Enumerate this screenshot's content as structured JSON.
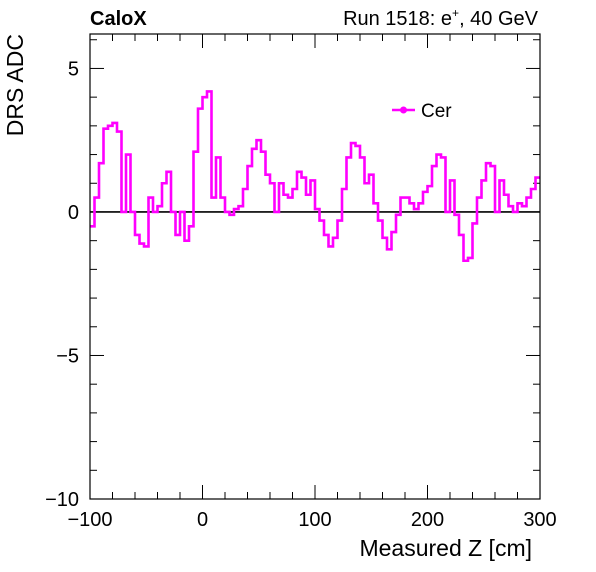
{
  "header": {
    "experiment": "CaloX",
    "run_label_prefix": "Run 1518: e",
    "run_label_sup": "+",
    "run_label_suffix": ", 40 GeV"
  },
  "colors": {
    "series": "#ff00ff",
    "zero_line": "#000000",
    "frame": "#000000"
  },
  "chart_data": {
    "type": "line",
    "style": "histogram-step",
    "title": "",
    "xlabel": "Measured Z [cm]",
    "ylabel": "DRS ADC",
    "xlim": [
      -100,
      300
    ],
    "ylim": [
      -10,
      6.2
    ],
    "x_ticks": [
      -100,
      0,
      100,
      200,
      300
    ],
    "x_tick_labels": [
      "−100",
      "0",
      "100",
      "200",
      "300"
    ],
    "y_ticks": [
      -10,
      -5,
      0,
      5
    ],
    "y_tick_labels": [
      "−10",
      "−5",
      "0",
      "5"
    ],
    "grid": false,
    "legend_position": "top-right",
    "series": [
      {
        "name": "Cer",
        "marker": "circle",
        "bin_width": 4,
        "bin_start": -100,
        "values": [
          -0.5,
          0.5,
          1.7,
          2.9,
          3.0,
          3.1,
          2.8,
          0.0,
          2.0,
          0.0,
          -0.8,
          -1.1,
          -1.2,
          0.5,
          0.0,
          0.2,
          1.0,
          1.4,
          0.0,
          -0.8,
          0.0,
          -1.0,
          -0.5,
          2.1,
          3.6,
          4.0,
          4.2,
          0.5,
          1.9,
          0.5,
          0.0,
          -0.1,
          0.1,
          0.2,
          0.8,
          1.6,
          2.2,
          2.5,
          2.1,
          1.3,
          1.0,
          0.0,
          1.0,
          0.6,
          0.5,
          0.8,
          1.4,
          1.2,
          0.6,
          1.1,
          0.1,
          -0.3,
          -0.8,
          -1.2,
          -0.9,
          -0.3,
          0.8,
          1.9,
          2.4,
          2.3,
          1.9,
          1.0,
          1.3,
          0.3,
          -0.3,
          -0.9,
          -1.3,
          -0.7,
          -0.1,
          0.5,
          0.5,
          0.3,
          0.1,
          0.3,
          0.7,
          0.9,
          1.6,
          2.0,
          1.9,
          0.0,
          1.1,
          -0.1,
          -0.8,
          -1.7,
          -1.6,
          -0.4,
          0.5,
          1.1,
          1.7,
          1.6,
          0.0,
          1.1,
          0.6,
          0.2,
          0.0,
          0.3,
          0.2,
          0.5,
          0.8,
          1.2
        ]
      }
    ]
  }
}
